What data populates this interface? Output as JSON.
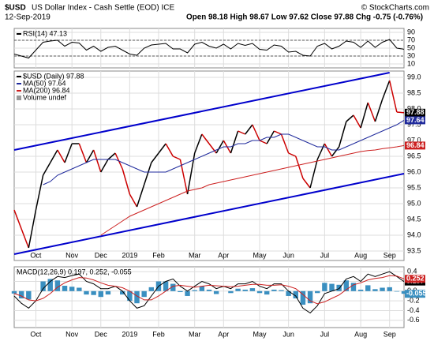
{
  "header": {
    "symbol": "$USD",
    "name": "US Dollar Index - Cash Settle (EOD) ICE",
    "date": "12-Sep-2019",
    "ohlc": "Open 98.18  High 98.67  Low 97.62  Close 97.88  Chg -0.75 (-0.76%)",
    "source": "© StockCharts.com"
  },
  "chart_data": [
    {
      "type": "line",
      "panel": "rsi",
      "categories": [
        null,
        null,
        null,
        "Oct",
        null,
        null,
        null,
        null,
        "Nov",
        null,
        null,
        null,
        "Dec",
        null,
        null,
        null,
        "2019",
        null,
        null,
        null,
        "Feb",
        null,
        null,
        null,
        null,
        "Mar",
        null,
        null,
        null,
        "Apr",
        null,
        null,
        null,
        null,
        "May",
        null,
        null,
        null,
        "Jun",
        null,
        null,
        null,
        null,
        "Jul",
        null,
        null,
        null,
        null,
        "Aug",
        null,
        null,
        null,
        "Sep",
        null,
        null
      ],
      "ylim": [
        0,
        100
      ],
      "yticks": [
        10,
        30,
        50,
        70,
        90
      ],
      "reference_lines": [
        70,
        30
      ],
      "grid": true,
      "series": [
        {
          "name": "RSI(14) 47.13",
          "color": "#000000",
          "values": [
            35,
            30,
            25,
            45,
            65,
            68,
            70,
            55,
            65,
            63,
            45,
            55,
            42,
            52,
            55,
            45,
            35,
            32,
            50,
            58,
            60,
            62,
            48,
            48,
            38,
            60,
            65,
            55,
            50,
            60,
            48,
            62,
            57,
            62,
            47,
            45,
            58,
            55,
            40,
            42,
            32,
            30,
            55,
            62,
            48,
            55,
            68,
            65,
            52,
            68,
            52,
            65,
            72,
            50,
            47.13
          ]
        }
      ]
    },
    {
      "type": "line",
      "panel": "price",
      "categories": [
        null,
        null,
        null,
        "Oct",
        null,
        null,
        null,
        null,
        "Nov",
        null,
        null,
        null,
        "Dec",
        null,
        null,
        null,
        "2019",
        null,
        null,
        null,
        "Feb",
        null,
        null,
        null,
        null,
        "Mar",
        null,
        null,
        null,
        "Apr",
        null,
        null,
        null,
        null,
        "May",
        null,
        null,
        null,
        "Jun",
        null,
        null,
        null,
        null,
        "Jul",
        null,
        null,
        null,
        null,
        "Aug",
        null,
        null,
        null,
        "Sep",
        null,
        null
      ],
      "ylim": [
        93.2,
        99.2
      ],
      "yticks": [
        93.5,
        {
          "value": 94,
          "label": "94.0"
        },
        94.5,
        {
          "value": 95,
          "label": "95.0"
        },
        95.5,
        {
          "value": 96,
          "label": "96.0"
        },
        96.5,
        {
          "value": 97,
          "label": "97.0"
        },
        97.5,
        {
          "value": 98,
          "label": "98.0"
        },
        98.5,
        {
          "value": 99,
          "label": "99.0"
        }
      ],
      "grid": true,
      "up_color": "#000000",
      "down_color": "#cc0000",
      "notes": [
        "Volume undef"
      ],
      "series": [
        {
          "name": "$USD (Daily) 97.88",
          "color": "#000000",
          "updown": true,
          "last_label": "97.88",
          "values": [
            94.8,
            94.2,
            93.6,
            94.8,
            95.9,
            96.3,
            96.7,
            96.3,
            96.9,
            96.9,
            96.3,
            96.7,
            96.0,
            96.4,
            96.6,
            96.1,
            95.3,
            94.9,
            95.6,
            96.3,
            96.6,
            96.9,
            96.5,
            96.4,
            95.3,
            96.6,
            97.2,
            96.9,
            96.6,
            97.0,
            96.6,
            97.3,
            97.2,
            97.5,
            97.0,
            96.9,
            97.3,
            97.2,
            96.6,
            96.5,
            95.8,
            95.5,
            96.4,
            96.9,
            96.5,
            96.8,
            97.6,
            97.8,
            97.4,
            98.2,
            97.6,
            98.3,
            98.9,
            97.9,
            97.88
          ]
        },
        {
          "name": "MA(50) 97.64",
          "color": "#1f2a9c",
          "last_label": "97.64",
          "values": [
            null,
            null,
            null,
            null,
            95.6,
            95.7,
            95.9,
            96.0,
            96.1,
            96.2,
            96.3,
            96.4,
            96.4,
            96.4,
            96.4,
            96.3,
            96.2,
            96.1,
            96.0,
            96.0,
            96.0,
            96.0,
            96.1,
            96.2,
            96.3,
            96.4,
            96.5,
            96.6,
            96.7,
            96.8,
            96.8,
            96.9,
            96.9,
            97.0,
            97.0,
            97.1,
            97.1,
            97.2,
            97.2,
            97.1,
            97.0,
            96.9,
            96.8,
            96.8,
            96.7,
            96.7,
            96.8,
            96.9,
            97.0,
            97.1,
            97.2,
            97.3,
            97.4,
            97.5,
            97.64
          ]
        },
        {
          "name": "MA(200) 96.84",
          "color": "#cc2020",
          "last_label": "96.84",
          "values": [
            null,
            null,
            null,
            null,
            null,
            null,
            null,
            null,
            null,
            null,
            null,
            null,
            94.0,
            94.15,
            94.3,
            94.45,
            94.6,
            94.7,
            94.8,
            94.9,
            95.0,
            95.1,
            95.2,
            95.3,
            95.4,
            95.45,
            95.5,
            95.6,
            95.65,
            95.7,
            95.75,
            95.8,
            95.85,
            95.9,
            95.95,
            96.0,
            96.05,
            96.1,
            96.15,
            96.2,
            96.25,
            96.3,
            96.35,
            96.4,
            96.45,
            96.5,
            96.55,
            96.6,
            96.65,
            96.68,
            96.7,
            96.74,
            96.77,
            96.8,
            96.84
          ]
        }
      ],
      "trendlines": [
        {
          "color": "#0000cc",
          "from": [
            0,
            96.7
          ],
          "to": [
            52,
            99.15
          ]
        },
        {
          "color": "#0000cc",
          "from": [
            0,
            93.4
          ],
          "to": [
            54,
            95.95
          ]
        }
      ]
    },
    {
      "type": "line",
      "panel": "macd",
      "show_x_labels": true,
      "categories": [
        null,
        null,
        null,
        "Oct",
        null,
        null,
        null,
        null,
        "Nov",
        null,
        null,
        null,
        "Dec",
        null,
        null,
        null,
        "2019",
        null,
        null,
        null,
        "Feb",
        null,
        null,
        null,
        null,
        "Mar",
        null,
        null,
        null,
        "Apr",
        null,
        null,
        null,
        null,
        "May",
        null,
        null,
        null,
        "Jun",
        null,
        null,
        null,
        null,
        "Jul",
        null,
        null,
        null,
        null,
        "Aug",
        null,
        null,
        null,
        "Sep",
        null,
        null
      ],
      "legend": "MACD(12,26,9) 0.197, 0.252, -0.055",
      "ylim": [
        -0.75,
        0.5
      ],
      "yticks": [
        0.4,
        0.2,
        {
          "value": 0,
          "label": "0.0"
        },
        -0.2,
        -0.4,
        -0.6
      ],
      "grid": true,
      "series": [
        {
          "kind": "bar",
          "color": "#3a8fc0",
          "last_label": "-0.055",
          "values": [
            -0.05,
            -0.15,
            -0.17,
            0.0,
            0.2,
            0.25,
            0.22,
            0.11,
            0.09,
            0.07,
            -0.07,
            -0.08,
            -0.12,
            -0.07,
            0.0,
            -0.07,
            -0.2,
            -0.25,
            -0.12,
            0.08,
            0.2,
            0.2,
            0.15,
            -0.02,
            -0.1,
            0.02,
            0.1,
            0.03,
            -0.06,
            0.0,
            -0.04,
            0.05,
            0.03,
            0.06,
            -0.04,
            -0.07,
            0.03,
            0.02,
            -0.1,
            -0.15,
            -0.28,
            -0.25,
            -0.04,
            0.17,
            0.15,
            0.13,
            0.22,
            0.17,
            0.03,
            0.12,
            0.04,
            0.07,
            0.08,
            -0.01,
            -0.055
          ]
        },
        {
          "color": "#000000",
          "last_label": "0.197",
          "values": [
            -0.1,
            -0.25,
            -0.35,
            -0.2,
            0.05,
            0.2,
            0.3,
            0.28,
            0.32,
            0.35,
            0.2,
            0.15,
            0.05,
            0.05,
            0.1,
            0.0,
            -0.2,
            -0.35,
            -0.3,
            -0.1,
            0.1,
            0.2,
            0.25,
            0.1,
            0.0,
            0.1,
            0.2,
            0.15,
            0.05,
            0.1,
            0.05,
            0.15,
            0.15,
            0.2,
            0.1,
            0.05,
            0.15,
            0.15,
            0.0,
            -0.1,
            -0.35,
            -0.45,
            -0.3,
            -0.05,
            0.0,
            0.05,
            0.25,
            0.3,
            0.2,
            0.35,
            0.3,
            0.35,
            0.4,
            0.3,
            0.197
          ]
        },
        {
          "color": "#cc2020",
          "last_label": "0.252",
          "values": [
            -0.05,
            -0.1,
            -0.18,
            -0.2,
            -0.15,
            -0.05,
            0.08,
            0.17,
            0.23,
            0.28,
            0.27,
            0.23,
            0.17,
            0.12,
            0.1,
            0.07,
            0.0,
            -0.1,
            -0.18,
            -0.18,
            -0.1,
            0.0,
            0.1,
            0.12,
            0.1,
            0.08,
            0.1,
            0.12,
            0.11,
            0.1,
            0.09,
            0.1,
            0.12,
            0.14,
            0.14,
            0.12,
            0.12,
            0.13,
            0.1,
            0.05,
            -0.07,
            -0.2,
            -0.26,
            -0.22,
            -0.15,
            -0.08,
            0.03,
            0.13,
            0.17,
            0.23,
            0.26,
            0.28,
            0.32,
            0.31,
            0.252
          ]
        }
      ]
    }
  ]
}
